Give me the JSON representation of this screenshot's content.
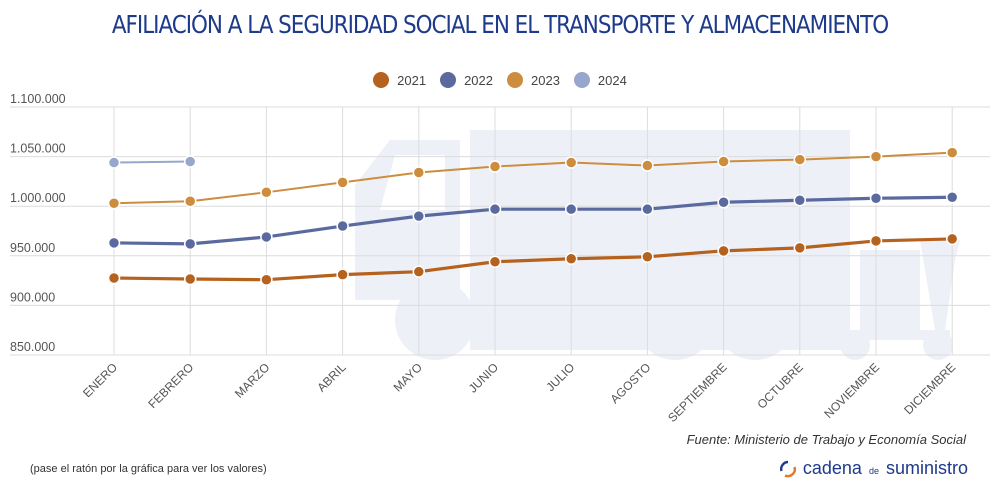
{
  "chart_data": {
    "type": "line",
    "title": "AFILIACIÓN A LA SEGURIDAD SOCIAL EN EL TRANSPORTE Y ALMACENAMIENTO",
    "xlabel": "",
    "ylabel": "",
    "categories": [
      "ENERO",
      "FEBRERO",
      "MARZO",
      "ABRIL",
      "MAYO",
      "JUNIO",
      "JULIO",
      "AGOSTO",
      "SEPTIEMBRE",
      "OCTUBRE",
      "NOVIEMBRE",
      "DICIEMBRE"
    ],
    "ylim": [
      850000,
      1100000
    ],
    "yticks": [
      850000,
      900000,
      950000,
      1000000,
      1050000,
      1100000
    ],
    "ytick_labels": [
      "850.000",
      "900.000",
      "950.000",
      "1.000.000",
      "1.050.000",
      "1.100.000"
    ],
    "grid": true,
    "legend_position": "top-center",
    "series": [
      {
        "name": "2021",
        "color": "#b5621e",
        "values": [
          927600,
          926600,
          925900,
          931000,
          934000,
          944000,
          947000,
          949000,
          955000,
          958000,
          965000,
          967000
        ]
      },
      {
        "name": "2022",
        "color": "#5a6a9e",
        "values": [
          963000,
          962000,
          969000,
          980000,
          990000,
          997000,
          997000,
          997000,
          1004000,
          1006000,
          1008000,
          1009000
        ]
      },
      {
        "name": "2023",
        "color": "#cd8d3e",
        "values": [
          1003000,
          1005000,
          1014000,
          1024000,
          1034000,
          1040000,
          1044000,
          1041000,
          1045000,
          1047000,
          1050000,
          1054000
        ]
      },
      {
        "name": "2024",
        "color": "#97a6cc",
        "values": [
          1044000,
          1045000
        ]
      }
    ]
  },
  "footer": {
    "source": "Fuente: Ministerio de Trabajo y Economía Social",
    "hint": "(pase el ratón por la gráfica para ver los valores)",
    "brand_part1": "cadena",
    "brand_part2": "de",
    "brand_part3": "suministro"
  },
  "icons": {
    "brand_logo": "circular-arrows-icon",
    "background": "truck-icon"
  }
}
